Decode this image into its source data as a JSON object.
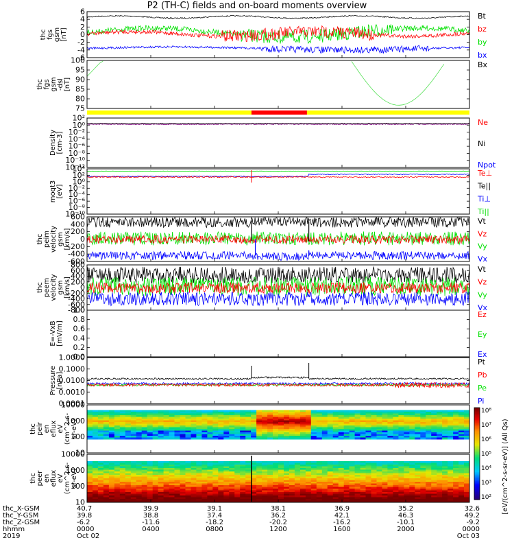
{
  "title": "P2 (TH-C) fields and on-board moments overview",
  "colors": {
    "black": "#000000",
    "red": "#ff0000",
    "green": "#00e000",
    "blue": "#0000ff",
    "lightgreen": "#55e055",
    "purple": "#800080",
    "yellow": "#ffff00"
  },
  "chart_data": [
    {
      "type": "line",
      "panel": "fgs_gsm",
      "ylabel": [
        "thc",
        "fgs",
        "gsm",
        "[nT]"
      ],
      "ylim": [
        -6,
        6
      ],
      "y_ticks": [
        "6",
        "4",
        "2",
        "0",
        "-2",
        "-4",
        "-6"
      ],
      "series": [
        {
          "name": "Bt",
          "color": "#000000"
        },
        {
          "name": "bz",
          "color": "#ff0000"
        },
        {
          "name": "by",
          "color": "#00e000"
        },
        {
          "name": "bx",
          "color": "#0000ff"
        }
      ]
    },
    {
      "type": "line",
      "panel": "fgs_dsl_angle",
      "ylabel": [
        "thc",
        "fgs",
        "gsm",
        "-dsl",
        "[nT]"
      ],
      "ylim": [
        70,
        100
      ],
      "y_ticks": [
        "100",
        "95",
        "90",
        "85",
        "80",
        "75"
      ],
      "series": [
        {
          "name": "Bx",
          "color": "#55e055"
        }
      ]
    },
    {
      "type": "line",
      "panel": "density",
      "ylabel": [
        "Density",
        "[cm-3]"
      ],
      "log": true,
      "y_ticks": [
        "10²",
        "10⁰",
        "10⁻²",
        "10⁻⁴",
        "10⁻⁶",
        "10⁻⁸",
        "10⁻¹⁰",
        "10⁻¹²"
      ],
      "series": [
        {
          "name": "Ne",
          "color": "#ff0000"
        },
        {
          "name": "Ni",
          "color": "#000000"
        },
        {
          "name": "Npot",
          "color": "#0000ff"
        }
      ]
    },
    {
      "type": "line",
      "panel": "temperature",
      "ylabel": [
        "moqt3",
        "[eV]"
      ],
      "log": true,
      "y_ticks": [
        "10⁴",
        "10²",
        "10⁰",
        "10⁻²",
        "10⁻⁴",
        "10⁻⁶",
        "10⁻⁸",
        "10⁻¹⁰"
      ],
      "series": [
        {
          "name": "Te⊥",
          "color": "#ff0000"
        },
        {
          "name": "Te||",
          "color": "#000000"
        },
        {
          "name": "Ti⊥",
          "color": "#0000ff"
        },
        {
          "name": "Ti||",
          "color": "#00e000"
        }
      ]
    },
    {
      "type": "line",
      "panel": "peim_velocity",
      "ylabel": [
        "thc",
        "peim",
        "velocity",
        "gsm",
        "[km/s]"
      ],
      "ylim": [
        -600,
        600
      ],
      "y_ticks": [
        "600",
        "400",
        "200",
        "0",
        "-200",
        "-400",
        "-600"
      ],
      "series": [
        {
          "name": "Vt",
          "color": "#000000"
        },
        {
          "name": "Vz",
          "color": "#ff0000"
        },
        {
          "name": "Vy",
          "color": "#00e000"
        },
        {
          "name": "Vx",
          "color": "#0000ff"
        }
      ]
    },
    {
      "type": "line",
      "panel": "peem_velocity",
      "ylabel": [
        "thc",
        "peem",
        "velocity",
        "gsm",
        "[km/s]"
      ],
      "ylim": [
        -800,
        800
      ],
      "y_ticks": [
        "800",
        "600",
        "400",
        "200",
        "0",
        "-200",
        "-400",
        "-600",
        "-800"
      ],
      "series": [
        {
          "name": "Vt",
          "color": "#000000"
        },
        {
          "name": "Vz",
          "color": "#ff0000"
        },
        {
          "name": "Vy",
          "color": "#00e000"
        },
        {
          "name": "Vx",
          "color": "#0000ff"
        }
      ]
    },
    {
      "type": "line",
      "panel": "efield",
      "ylabel": [
        "E=-VxB",
        "[mV/m]"
      ],
      "ylim": [
        0,
        1
      ],
      "y_ticks": [
        "1.0",
        "0.8",
        "0.6",
        "0.4",
        "0.2",
        "0.0"
      ],
      "series": [
        {
          "name": "Ez",
          "color": "#ff0000"
        },
        {
          "name": "Ey",
          "color": "#00e000"
        },
        {
          "name": "Ex",
          "color": "#0000ff"
        }
      ]
    },
    {
      "type": "line",
      "panel": "pressure",
      "ylabel": [
        "Pressure",
        "[nPa]"
      ],
      "log": true,
      "y_ticks": [
        "1.0000",
        "0.1000",
        "0.0100",
        "0.0010",
        "0.0001"
      ],
      "series": [
        {
          "name": "Pt",
          "color": "#000000"
        },
        {
          "name": "Pb",
          "color": "#ff0000"
        },
        {
          "name": "Pe",
          "color": "#00e000"
        },
        {
          "name": "Pi",
          "color": "#0000ff"
        }
      ]
    },
    {
      "type": "heatmap",
      "panel": "peir_spectrogram",
      "ylabel": [
        "thc",
        "peir",
        "en",
        "eflux",
        "eV",
        "(cm^2-s-",
        "sr-eV)"
      ],
      "y_ticks": [
        "10000",
        "1000",
        "100",
        "10"
      ]
    },
    {
      "type": "heatmap",
      "panel": "peer_spectrogram",
      "ylabel": [
        "thc",
        "peer",
        "en",
        "eflux",
        "eV",
        "(cm^2-s-",
        "sr-eV)"
      ],
      "y_ticks": [
        "10000",
        "1000",
        "100",
        "10"
      ]
    }
  ],
  "colorbar": {
    "label": "[eV/(cm^2-s-sr-eV)] (All Qs)",
    "ticks": [
      "10⁸",
      "10⁷",
      "10⁶",
      "10⁵",
      "10⁴",
      "10³",
      "10²"
    ]
  },
  "x_axis": {
    "row_labels": [
      "thc_X-GSM",
      "thc_Y-GSM",
      "thc_Z-GSM",
      "hhmm",
      "2019"
    ],
    "columns": [
      [
        "40.7",
        "39.8",
        "-6.2",
        "0000",
        "Oct 02"
      ],
      [
        "39.9",
        "38.8",
        "-11.6",
        "0400",
        ""
      ],
      [
        "39.1",
        "37.4",
        "-18.2",
        "0800",
        ""
      ],
      [
        "38.1",
        "36.2",
        "-20.2",
        "1200",
        ""
      ],
      [
        "36.9",
        "42.1",
        "-16.2",
        "1600",
        ""
      ],
      [
        "35.2",
        "46.3",
        "-10.1",
        "2000",
        ""
      ],
      [
        "32.6",
        "49.2",
        "-9.2",
        "0000",
        "Oct 03"
      ]
    ]
  }
}
